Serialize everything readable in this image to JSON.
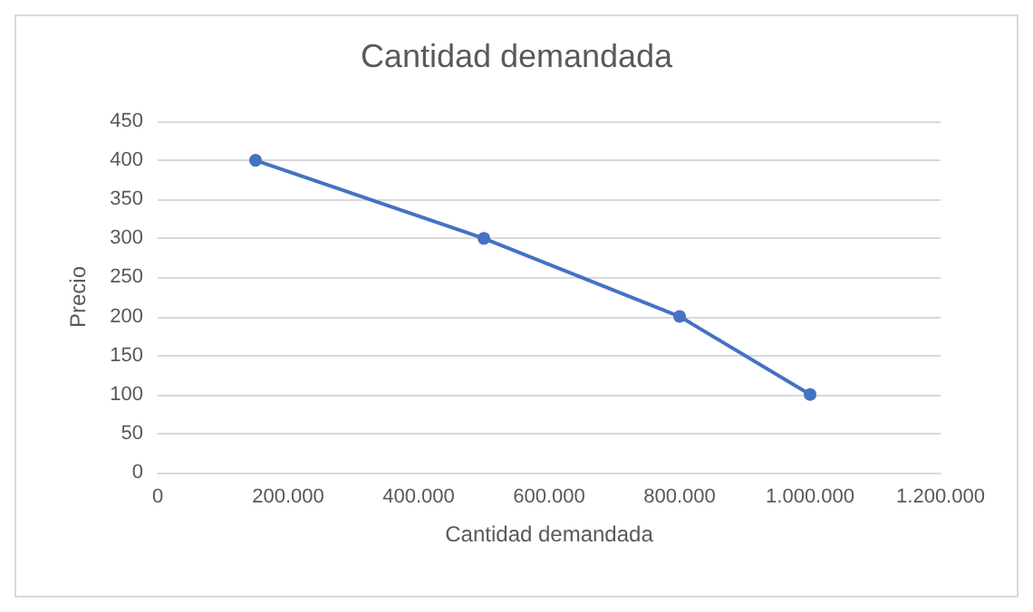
{
  "chart_data": {
    "type": "line",
    "title": "Cantidad demandada",
    "xlabel": "Cantidad demandada",
    "ylabel": "Precio",
    "x": [
      150000,
      500000,
      800000,
      1000000
    ],
    "series": [
      {
        "color": "#4472c4",
        "values": [
          400,
          300,
          200,
          100
        ]
      }
    ],
    "xlim": [
      0,
      1200000
    ],
    "xticks": [
      0,
      {
        "value": 200000,
        "label": "200.000"
      },
      {
        "value": 400000,
        "label": "400.000"
      },
      {
        "value": 600000,
        "label": "600.000"
      },
      {
        "value": 800000,
        "label": "800.000"
      },
      {
        "value": 1000000,
        "label": "1.000.000"
      },
      {
        "value": 1200000,
        "label": "1.200.000"
      }
    ],
    "ylim": [
      0,
      450
    ],
    "yticks": [
      0,
      50,
      100,
      150,
      200,
      250,
      300,
      350,
      400,
      450
    ],
    "grid": "y",
    "marker": "circle",
    "line_style": "solid"
  }
}
